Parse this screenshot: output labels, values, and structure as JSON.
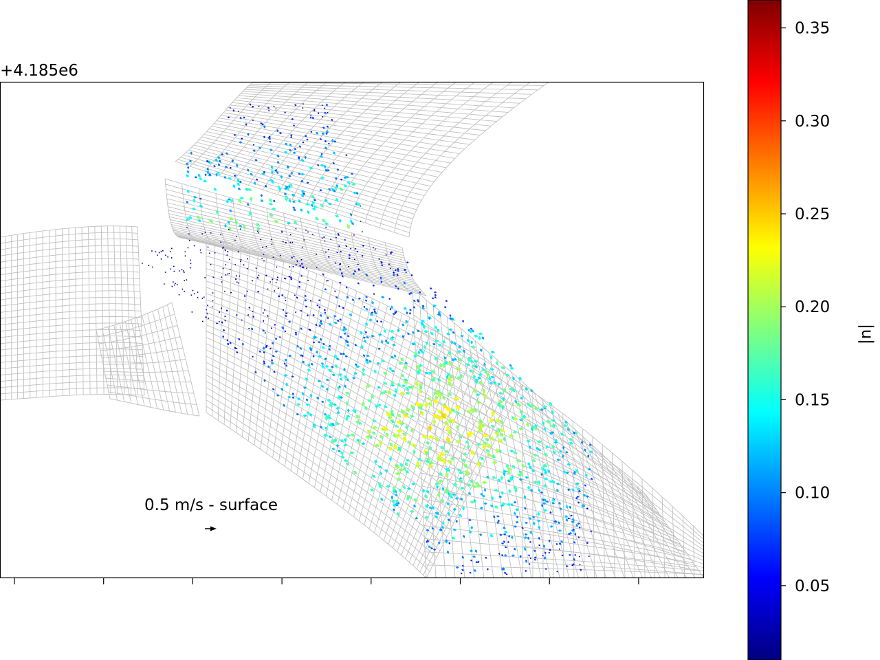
{
  "chart_data": {
    "type": "scatter",
    "subtype": "quiver-on-mesh",
    "offset_text": "+4.185e6",
    "annotation": "0.5 m/s - surface",
    "x_tick_labels": [],
    "y_tick_labels": [],
    "colorbar": {
      "label": "|u|",
      "colormap": "jet",
      "range": [
        0.01,
        0.365
      ],
      "ticks": [
        0.05,
        0.1,
        0.15,
        0.2,
        0.25,
        0.3,
        0.35
      ],
      "tick_labels": [
        "0.05",
        "0.10",
        "0.15",
        "0.20",
        "0.25",
        "0.30",
        "0.35"
      ]
    },
    "mesh_color": "#c0c0c0",
    "grid": false
  }
}
